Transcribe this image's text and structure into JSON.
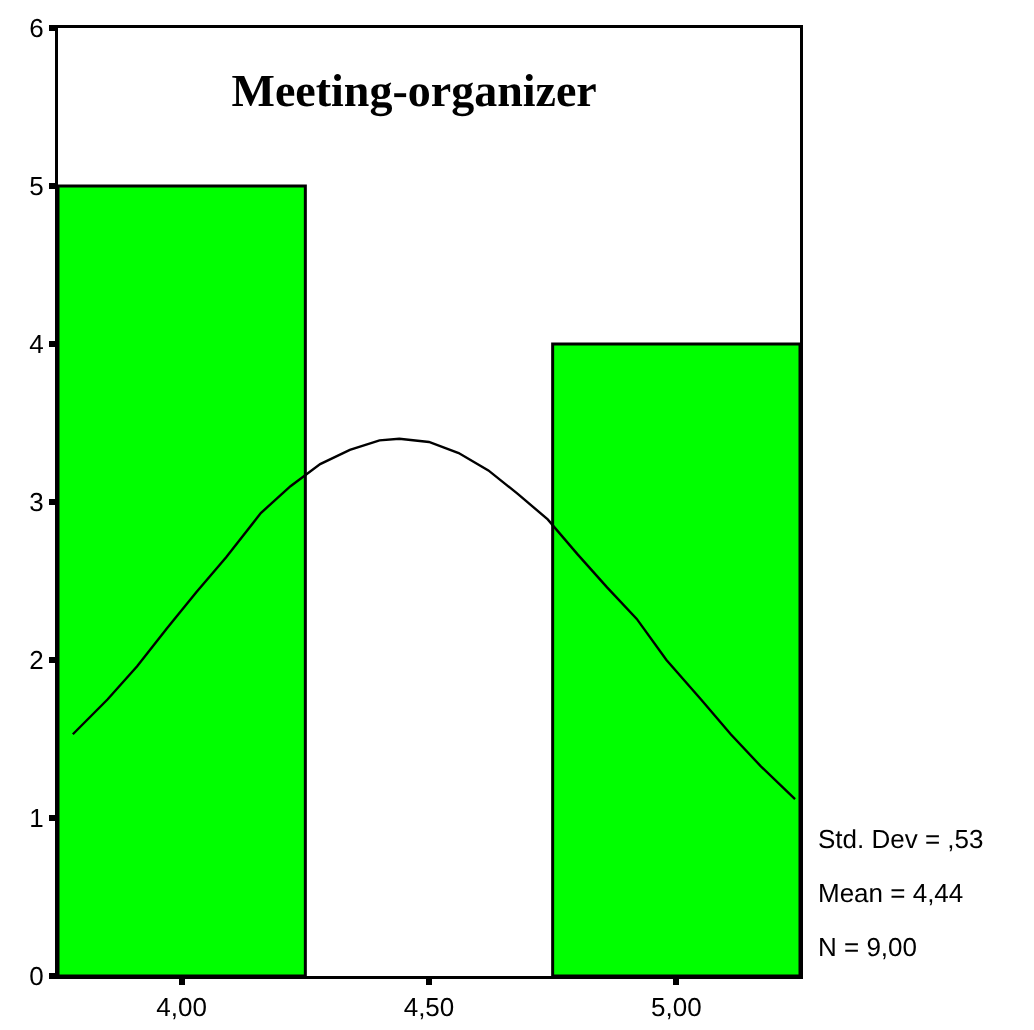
{
  "chart_data": {
    "type": "histogram",
    "title": "Meeting-organizer",
    "bins": [
      3.75,
      4.25,
      4.75,
      5.25
    ],
    "values": [
      5,
      0,
      4
    ],
    "color": "#00ff00",
    "series": [
      {
        "type": "line",
        "color": "#000000",
        "x": [
          3.78,
          3.85,
          3.91,
          3.97,
          4.03,
          4.09,
          4.16,
          4.22,
          4.28,
          4.34,
          4.4,
          4.44,
          4.5,
          4.56,
          4.62,
          4.68,
          4.74,
          4.8,
          4.86,
          4.92,
          4.98,
          5.05,
          5.11,
          5.17,
          5.24
        ],
        "values": [
          1.53,
          1.75,
          1.96,
          2.2,
          2.43,
          2.65,
          2.93,
          3.1,
          3.24,
          3.33,
          3.39,
          3.4,
          3.38,
          3.31,
          3.2,
          3.05,
          2.89,
          2.67,
          2.46,
          2.26,
          2.0,
          1.75,
          1.53,
          1.33,
          1.12
        ]
      }
    ],
    "xlim": [
      3.75,
      5.25
    ],
    "xticks": [
      {
        "value": 4,
        "label": "4,00"
      },
      {
        "value": 4.5,
        "label": "4,50"
      },
      {
        "value": 5,
        "label": "5,00"
      }
    ],
    "ylim": [
      0,
      6
    ],
    "yticks": [
      0,
      1,
      2,
      3,
      4,
      5,
      6
    ],
    "annotations": [
      "Std. Dev = ,53",
      "Mean = 4,44",
      "N = 9,00"
    ],
    "grid": false
  }
}
